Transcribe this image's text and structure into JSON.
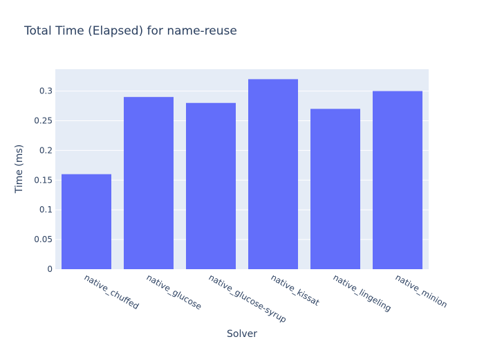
{
  "chart_data": {
    "type": "bar",
    "title": "Total Time (Elapsed) for name-reuse",
    "xlabel": "Solver",
    "ylabel": "Time (ms)",
    "categories": [
      "native_chuffed",
      "native_glucose",
      "native_glucose-syrup",
      "native_kissat",
      "native_lingeling",
      "native_minion"
    ],
    "values": [
      0.16,
      0.29,
      0.28,
      0.32,
      0.27,
      0.3
    ],
    "ylim": [
      0,
      0.3368
    ],
    "yticks": [
      0,
      0.05,
      0.1,
      0.15,
      0.2,
      0.25,
      0.3
    ],
    "ytick_labels": [
      "0",
      "0.05",
      "0.1",
      "0.15",
      "0.2",
      "0.25",
      "0.3"
    ],
    "grid": true,
    "colors": {
      "bar": "#636efa",
      "plot_bg": "#e5ecf6",
      "grid": "#ffffff",
      "text": "#2a3f5f"
    }
  }
}
